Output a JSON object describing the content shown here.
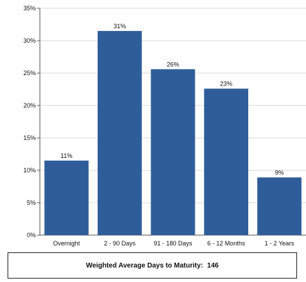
{
  "chart_data": {
    "type": "bar",
    "categories": [
      "Overnight",
      "2 - 90 Days",
      "91 - 180 Days",
      "6 - 12 Months",
      "1 - 2 Years"
    ],
    "values": [
      11.5,
      31.5,
      25.6,
      22.6,
      8.9
    ],
    "data_labels": [
      "11%",
      "31%",
      "26%",
      "23%",
      "9%"
    ],
    "y_ticks": [
      "0%",
      "5%",
      "10%",
      "15%",
      "20%",
      "25%",
      "30%",
      "35%"
    ],
    "ylim": [
      0,
      35
    ],
    "title": "",
    "xlabel": "",
    "ylabel": "",
    "grid": true,
    "legend": "none",
    "bar_color": "#2f5d9a"
  },
  "footer": {
    "label": "Weighted Average Days to Maturity:",
    "value": "146"
  }
}
